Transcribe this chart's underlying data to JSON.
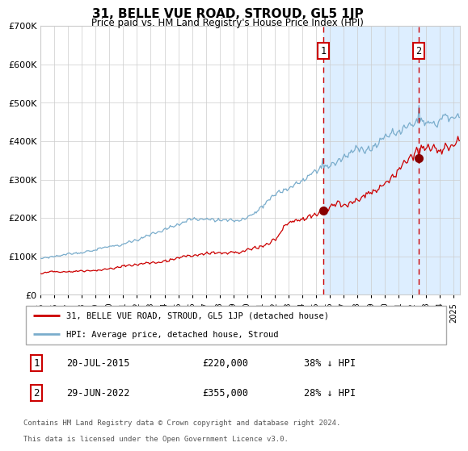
{
  "title": "31, BELLE VUE ROAD, STROUD, GL5 1JP",
  "subtitle": "Price paid vs. HM Land Registry's House Price Index (HPI)",
  "legend_line1": "31, BELLE VUE ROAD, STROUD, GL5 1JP (detached house)",
  "legend_line2": "HPI: Average price, detached house, Stroud",
  "annotation1_date": "20-JUL-2015",
  "annotation1_price": "£220,000",
  "annotation1_hpi": "38% ↓ HPI",
  "annotation1_date_num": 2015.54,
  "annotation1_value_red": 220000,
  "annotation2_date": "29-JUN-2022",
  "annotation2_price": "£355,000",
  "annotation2_hpi": "28% ↓ HPI",
  "annotation2_date_num": 2022.49,
  "annotation2_value_red": 355000,
  "ylim": [
    0,
    700000
  ],
  "xlim_start": 1995.0,
  "xlim_end": 2025.5,
  "yticks": [
    0,
    100000,
    200000,
    300000,
    400000,
    500000,
    600000,
    700000
  ],
  "ytick_labels": [
    "£0",
    "£100K",
    "£200K",
    "£300K",
    "£400K",
    "£500K",
    "£600K",
    "£700K"
  ],
  "xticks": [
    1995,
    1996,
    1997,
    1998,
    1999,
    2000,
    2001,
    2002,
    2003,
    2004,
    2005,
    2006,
    2007,
    2008,
    2009,
    2010,
    2011,
    2012,
    2013,
    2014,
    2015,
    2016,
    2017,
    2018,
    2019,
    2020,
    2021,
    2022,
    2023,
    2024,
    2025
  ],
  "line_red_color": "#cc0000",
  "line_blue_color": "#7aadcc",
  "vline_color": "#cc0000",
  "marker_color": "#880000",
  "shade_color": "#ddeeff",
  "background_color": "#ffffff",
  "grid_color": "#cccccc",
  "footnote_line1": "Contains HM Land Registry data © Crown copyright and database right 2024.",
  "footnote_line2": "This data is licensed under the Open Government Licence v3.0."
}
